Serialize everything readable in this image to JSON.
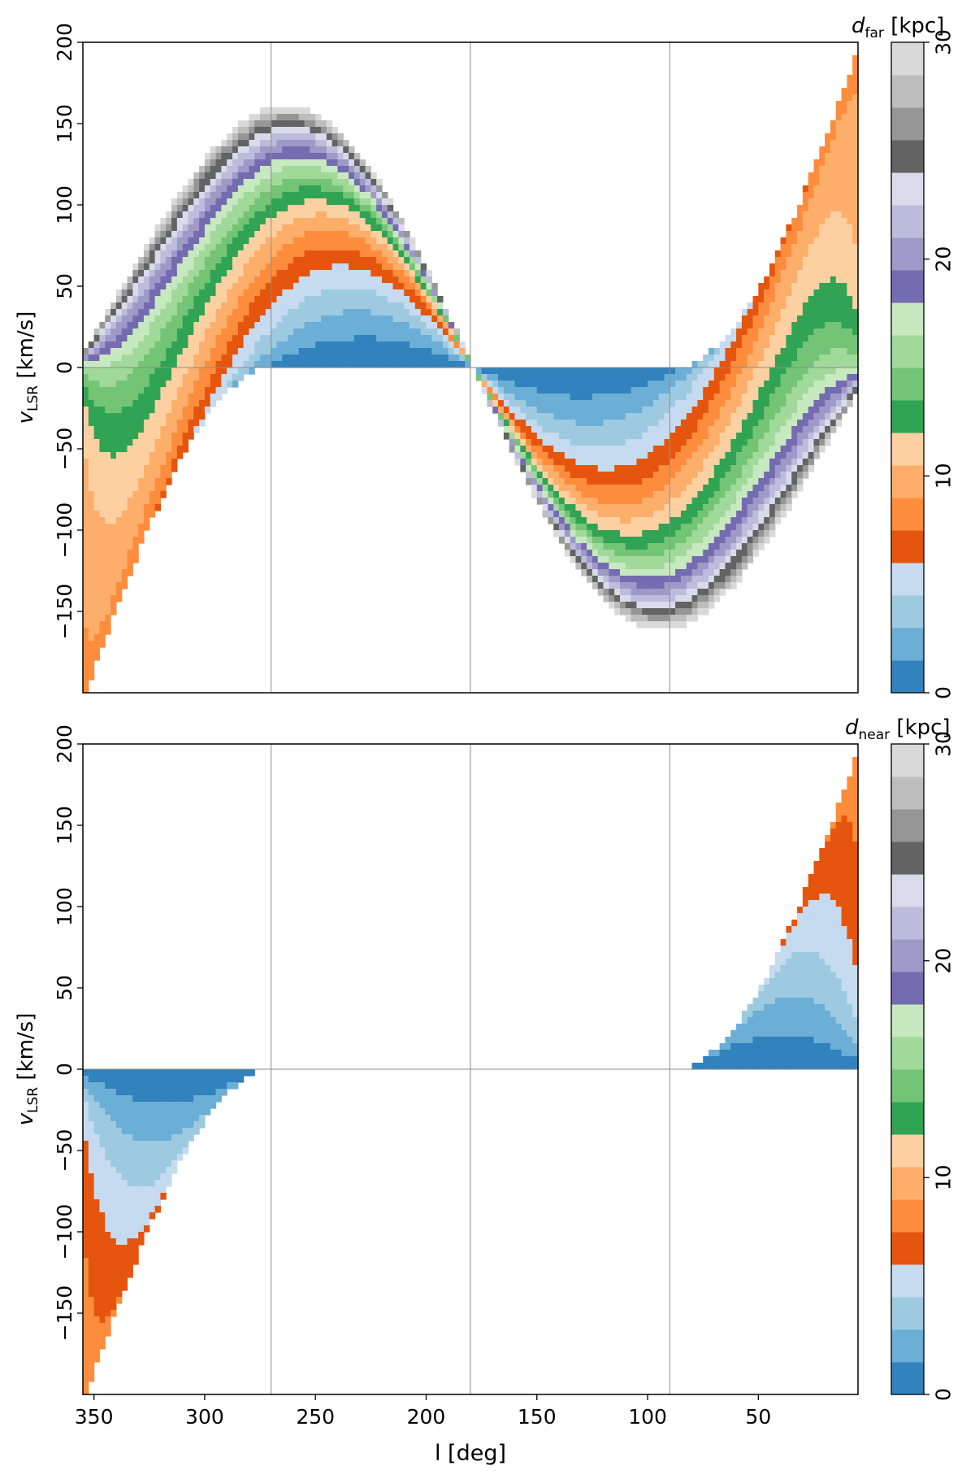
{
  "figure": {
    "xlabel": "l [deg]",
    "ylabel_main": "v",
    "ylabel_sub": "LSR",
    "ylabel_unit": "[km/s]"
  },
  "chart_data": [
    {
      "type": "heatmap",
      "panel": "far",
      "description_of_mapping": "color = far kinematic distance for each (l, v_LSR)",
      "xlim": [
        355,
        5
      ],
      "ylim": [
        -200,
        200
      ],
      "x_ticks": [
        350,
        300,
        250,
        200,
        150,
        100,
        50
      ],
      "y_ticks": [
        -150,
        -100,
        -50,
        0,
        50,
        100,
        150,
        200
      ],
      "vertical_lines": [
        270,
        180,
        90
      ],
      "horizontal_lines": [
        0
      ],
      "colorbar": {
        "label_main": "d",
        "label_sub": "far",
        "label_unit": "[kpc]",
        "range": [
          0,
          30
        ],
        "ticks": [
          0,
          10,
          20,
          30
        ],
        "levels": 20,
        "colors": [
          "#3182bd",
          "#6baed6",
          "#9ecae1",
          "#c6dbef",
          "#e6550d",
          "#fd8d3c",
          "#fdae6b",
          "#fdd0a2",
          "#31a354",
          "#74c476",
          "#a1d99b",
          "#c7e9c0",
          "#756bb1",
          "#9e9ac8",
          "#bcbddc",
          "#dadaeb",
          "#636363",
          "#969696",
          "#bdbdbd",
          "#d9d9d9"
        ]
      },
      "rotation_curve_kms": 220,
      "R0_kpc": 8.5
    },
    {
      "type": "heatmap",
      "panel": "near",
      "description_of_mapping": "color = near kinematic distance for each (l, v_LSR)",
      "xlim": [
        355,
        5
      ],
      "ylim": [
        -200,
        200
      ],
      "x_ticks": [
        350,
        300,
        250,
        200,
        150,
        100,
        50
      ],
      "y_ticks": [
        -150,
        -100,
        -50,
        0,
        50,
        100,
        150,
        200
      ],
      "vertical_lines": [
        270,
        180,
        90
      ],
      "horizontal_lines": [
        0
      ],
      "colorbar": {
        "label_main": "d",
        "label_sub": "near",
        "label_unit": "[kpc]",
        "range": [
          0,
          30
        ],
        "ticks": [
          0,
          10,
          20,
          30
        ],
        "levels": 20,
        "colors": [
          "#3182bd",
          "#6baed6",
          "#9ecae1",
          "#c6dbef",
          "#e6550d",
          "#fd8d3c",
          "#fdae6b",
          "#fdd0a2",
          "#31a354",
          "#74c476",
          "#a1d99b",
          "#c7e9c0",
          "#756bb1",
          "#9e9ac8",
          "#bcbddc",
          "#dadaeb",
          "#636363",
          "#969696",
          "#bdbdbd",
          "#d9d9d9"
        ]
      },
      "rotation_curve_kms": 220,
      "R0_kpc": 8.5
    }
  ]
}
